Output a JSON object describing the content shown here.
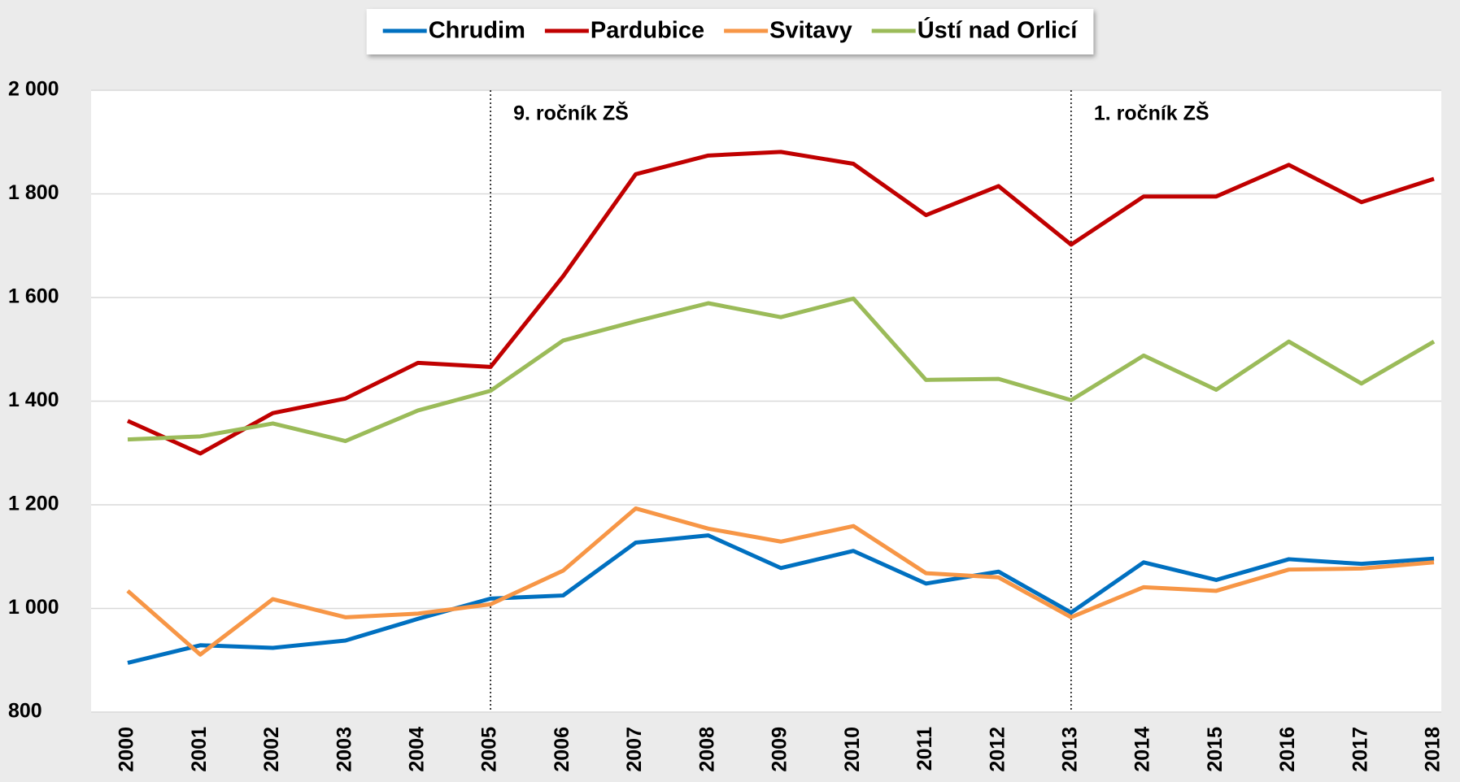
{
  "chart_data": {
    "type": "line",
    "categories": [
      "2000",
      "2001",
      "2002",
      "2003",
      "2004",
      "2005",
      "2006",
      "2007",
      "2008",
      "2009",
      "2010",
      "2011",
      "2012",
      "2013",
      "2014",
      "2015",
      "2016",
      "2017",
      "2018"
    ],
    "series": [
      {
        "name": "Chrudim",
        "color": "#0070c0",
        "values": [
          895,
          929,
          924,
          938,
          980,
          1019,
          1025,
          1127,
          1141,
          1078,
          1111,
          1048,
          1071,
          992,
          1089,
          1055,
          1095,
          1086,
          1096
        ]
      },
      {
        "name": "Pardubice",
        "color": "#c00000",
        "values": [
          1362,
          1299,
          1377,
          1405,
          1474,
          1466,
          1641,
          1838,
          1874,
          1881,
          1858,
          1759,
          1815,
          1702,
          1795,
          1795,
          1856,
          1784,
          1829
        ]
      },
      {
        "name": "Svitavy",
        "color": "#f79646",
        "values": [
          1034,
          911,
          1018,
          983,
          990,
          1008,
          1073,
          1193,
          1154,
          1129,
          1159,
          1068,
          1060,
          983,
          1041,
          1034,
          1075,
          1077,
          1089
        ]
      },
      {
        "name": "Ústí nad Orlicí",
        "color": "#9bbb59",
        "values": [
          1326,
          1332,
          1357,
          1323,
          1382,
          1420,
          1517,
          1554,
          1589,
          1562,
          1598,
          1441,
          1443,
          1402,
          1488,
          1422,
          1515,
          1434,
          1515
        ]
      }
    ],
    "ylim": [
      800,
      2000
    ],
    "yticks": [
      800,
      {
        "value": 1000,
        "label": "1 000"
      },
      {
        "value": 1200,
        "label": "1 200"
      },
      {
        "value": 1400,
        "label": "1 400"
      },
      {
        "value": 1600,
        "label": "1 600"
      },
      {
        "value": 1800,
        "label": "1 800"
      },
      {
        "value": 2000,
        "label": "2 000"
      }
    ],
    "grid": true,
    "legend": "top",
    "annotations": [
      {
        "x": "2005",
        "text": "9. ročník ZŠ"
      },
      {
        "x": "2013",
        "text": "1. ročník ZŠ"
      }
    ]
  }
}
